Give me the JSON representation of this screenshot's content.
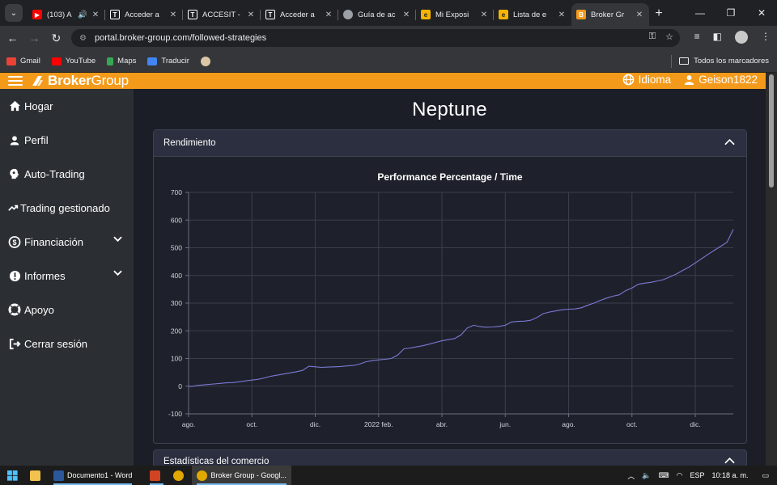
{
  "browser": {
    "tabs": [
      {
        "title": "(103) A",
        "icon": "youtube-icon",
        "color": "#ff0000",
        "audio": true
      },
      {
        "title": "Acceder a",
        "icon": "accesit-icon",
        "color": "#ffffff"
      },
      {
        "title": "ACCESIT -",
        "icon": "accesit-icon",
        "color": "#ffffff"
      },
      {
        "title": "Acceder a",
        "icon": "accesit-icon",
        "color": "#ffffff"
      },
      {
        "title": "Guía de ac",
        "icon": "globe-icon",
        "color": "#9aa0a6"
      },
      {
        "title": "Mi Exposi",
        "icon": "orange-logo-icon",
        "color": "#f5b400"
      },
      {
        "title": "Lista de e",
        "icon": "orange-logo-icon",
        "color": "#f5b400"
      },
      {
        "title": "Broker Gr",
        "icon": "brokergroup-icon",
        "color": "#f49a1b",
        "active": true
      }
    ],
    "url": "portal.broker-group.com/followed-strategies",
    "bookmarks": [
      {
        "label": "Gmail",
        "color": "#ea4335"
      },
      {
        "label": "YouTube",
        "color": "#ff0000"
      },
      {
        "label": "Maps",
        "color": "#34a853"
      },
      {
        "label": "Traducir",
        "color": "#4285f4"
      }
    ],
    "all_bookmarks": "Todos los marcadores"
  },
  "site": {
    "logo_a": "Broker",
    "logo_b": "Group",
    "language": "Idioma",
    "user": "Geison1822"
  },
  "sidebar": {
    "items": [
      {
        "label": "Hogar",
        "icon": "home-icon"
      },
      {
        "label": "Perfil",
        "icon": "user-icon"
      },
      {
        "label": "Auto-Trading",
        "icon": "brain-icon"
      },
      {
        "label": "Trading gestionado",
        "icon": "trend-icon"
      },
      {
        "label": "Financiación",
        "icon": "exchange-icon",
        "expandable": true
      },
      {
        "label": "Informes",
        "icon": "alert-icon",
        "expandable": true
      },
      {
        "label": "Apoyo",
        "icon": "lifebuoy-icon"
      },
      {
        "label": "Cerrar sesión",
        "icon": "logout-icon"
      }
    ]
  },
  "page": {
    "title": "Neptune",
    "performance_header": "Rendimiento",
    "stats_header": "Estadísticas del comercio"
  },
  "chart_data": {
    "type": "line",
    "title": "Performance Percentage / Time",
    "xlabel": "",
    "ylabel": "",
    "ylim": [
      -100,
      700
    ],
    "yticks": [
      -100,
      0,
      100,
      200,
      300,
      400,
      500,
      600,
      700
    ],
    "xticks": [
      "ago.",
      "oct.",
      "dic.",
      "2022 feb.",
      "abr.",
      "jun.",
      "ago.",
      "oct.",
      "dic."
    ],
    "grid": true,
    "line_color": "#7b79d6",
    "series": [
      {
        "x": [
          0.0,
          0.05,
          0.12,
          0.2,
          0.3,
          0.4,
          0.5,
          0.6,
          0.7,
          0.8,
          0.9,
          1.0,
          1.1,
          1.2,
          1.3,
          1.4,
          1.5,
          1.6,
          1.7,
          1.8,
          1.9,
          2.0,
          2.1,
          2.2,
          2.3,
          2.4,
          2.5,
          2.6,
          2.7,
          2.8,
          2.9,
          3.0,
          3.1,
          3.2,
          3.3,
          3.4,
          3.5,
          3.6,
          3.7,
          3.8,
          3.9,
          4.0,
          4.1,
          4.2,
          4.3,
          4.4,
          4.5,
          4.6,
          4.7,
          4.8,
          4.9,
          5.0,
          5.1,
          5.2,
          5.3,
          5.4,
          5.5,
          5.6,
          5.7,
          5.8,
          5.9,
          6.0,
          6.1,
          6.2,
          6.3,
          6.4,
          6.5,
          6.6,
          6.7,
          6.8,
          6.9,
          7.0,
          7.1,
          7.2,
          7.3,
          7.4,
          7.5,
          7.6,
          7.7,
          7.8,
          7.9,
          8.0,
          8.2,
          8.5,
          8.6
        ],
        "y": [
          0,
          -1,
          2,
          4,
          6,
          8,
          10,
          12,
          13,
          16,
          19,
          22,
          25,
          30,
          36,
          40,
          44,
          48,
          52,
          57,
          72,
          70,
          68,
          69,
          70,
          71,
          73,
          75,
          80,
          88,
          92,
          95,
          97,
          100,
          112,
          135,
          138,
          142,
          146,
          152,
          158,
          164,
          168,
          172,
          185,
          210,
          220,
          215,
          213,
          214,
          216,
          220,
          232,
          234,
          235,
          238,
          248,
          262,
          268,
          272,
          276,
          278,
          279,
          283,
          292,
          300,
          310,
          318,
          325,
          330,
          345,
          355,
          368,
          372,
          375,
          380,
          385,
          395,
          405,
          418,
          430,
          445,
          476,
          520,
          567
        ]
      }
    ]
  },
  "taskbar": {
    "items": [
      {
        "label": "Documento1 - Word",
        "color": "#2b579a"
      },
      {
        "label": "",
        "color": "#d04423"
      },
      {
        "label": "",
        "color": "#e0a800"
      },
      {
        "label": "Broker Group - Googl...",
        "color": "#e0a800",
        "active": true
      }
    ],
    "lang": "ESP",
    "time": "10:18 a. m."
  }
}
